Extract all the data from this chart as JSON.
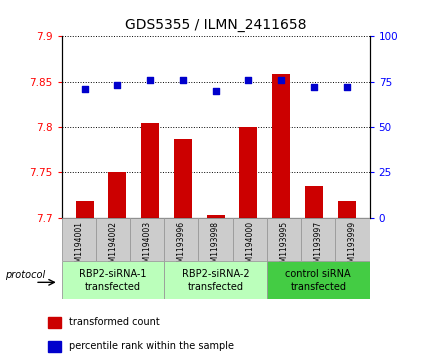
{
  "title": "GDS5355 / ILMN_2411658",
  "samples": [
    "GSM1194001",
    "GSM1194002",
    "GSM1194003",
    "GSM1193996",
    "GSM1193998",
    "GSM1194000",
    "GSM1193995",
    "GSM1193997",
    "GSM1193999"
  ],
  "bar_values": [
    7.718,
    7.75,
    7.805,
    7.787,
    7.703,
    7.8,
    7.858,
    7.735,
    7.718
  ],
  "dot_values": [
    71,
    73,
    76,
    76,
    70,
    76,
    76,
    72,
    72
  ],
  "ylim_left": [
    7.7,
    7.9
  ],
  "ylim_right": [
    0,
    100
  ],
  "yticks_left": [
    7.7,
    7.75,
    7.8,
    7.85,
    7.9
  ],
  "yticks_right": [
    0,
    25,
    50,
    75,
    100
  ],
  "bar_color": "#cc0000",
  "dot_color": "#0000cc",
  "groups": [
    {
      "label": "RBP2-siRNA-1\ntransfected",
      "indices": [
        0,
        1,
        2
      ],
      "color": "#bbffbb"
    },
    {
      "label": "RBP2-siRNA-2\ntransfected",
      "indices": [
        3,
        4,
        5
      ],
      "color": "#bbffbb"
    },
    {
      "label": "control siRNA\ntransfected",
      "indices": [
        6,
        7,
        8
      ],
      "color": "#44cc44"
    }
  ],
  "protocol_label": "protocol",
  "legend_items": [
    {
      "label": "transformed count",
      "color": "#cc0000"
    },
    {
      "label": "percentile rank within the sample",
      "color": "#0000cc"
    }
  ],
  "background_color": "#ffffff",
  "sample_bg": "#cccccc",
  "border_color": "#999999"
}
